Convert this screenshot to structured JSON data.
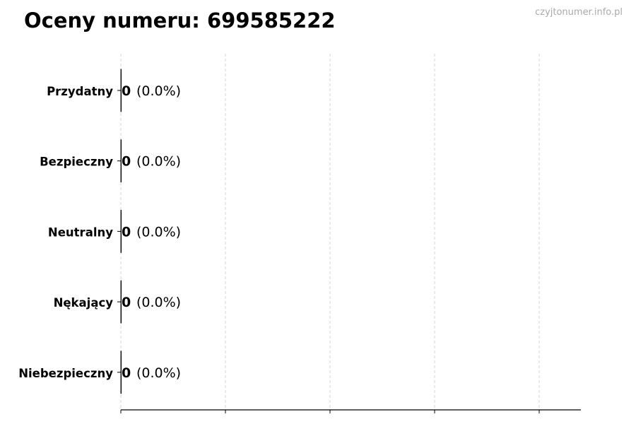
{
  "chart_data": {
    "type": "bar",
    "orientation": "horizontal",
    "title": "Oceny numeru: 699585222",
    "watermark": "czyjtonumer.info.pl",
    "categories": [
      "Przydatny",
      "Bezpieczny",
      "Neutralny",
      "Nękający",
      "Niebezpieczny"
    ],
    "values": [
      0,
      0,
      0,
      0,
      0
    ],
    "value_labels": [
      "0",
      "0",
      "0",
      "0",
      "0"
    ],
    "percent_labels": [
      "(0.0%)",
      "(0.0%)",
      "(0.0%)",
      "(0.0%)",
      "(0.0%)"
    ],
    "xlabel": "",
    "ylabel": "",
    "x_tick_labels_shown": false,
    "grid": "vertical dashed",
    "bar_edge_color": "#000000"
  }
}
